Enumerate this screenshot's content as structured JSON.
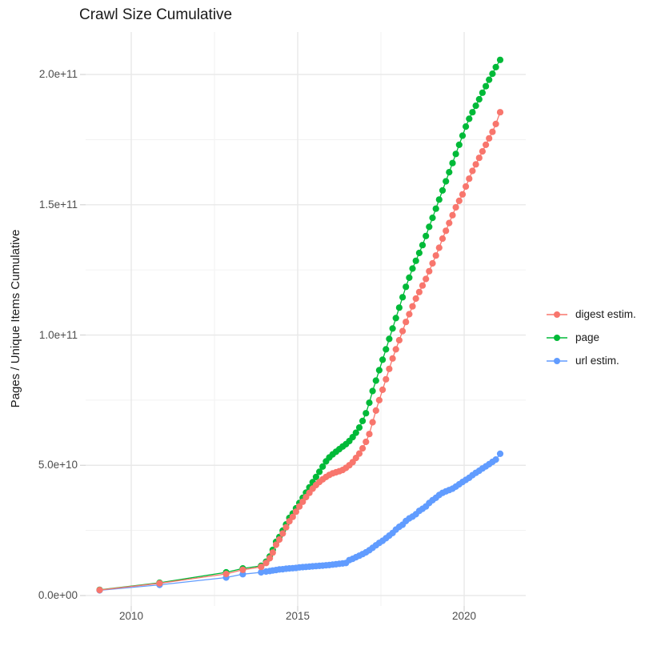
{
  "chart_data": {
    "type": "line",
    "title": "Crawl Size Cumulative",
    "xlabel": "",
    "ylabel": "Pages / Unique Items Cumulative",
    "grid": true,
    "legend_position": "right",
    "values_scale": 1000000000,
    "x_axis": {
      "range": [
        2008.63,
        2021.85
      ],
      "ticks": [
        {
          "value": 2010,
          "label": "2010"
        },
        {
          "value": 2015,
          "label": "2015"
        },
        {
          "value": 2020,
          "label": "2020"
        }
      ],
      "minor": [
        2012.5,
        2017.5
      ]
    },
    "y_axis": {
      "range": [
        -4,
        216.3
      ],
      "ticks": [
        {
          "value": 200,
          "label": "2.0e+11"
        },
        {
          "value": 150,
          "label": "1.5e+11"
        },
        {
          "value": 100,
          "label": "1.0e+11"
        },
        {
          "value": 50,
          "label": "5.0e+10"
        },
        {
          "value": 0,
          "label": "0.0e+00"
        }
      ],
      "minor": [
        25,
        75,
        125,
        175
      ]
    },
    "colors": {
      "grid_major": "#e8e8e8",
      "grid_minor": "#f1f1f1",
      "axis_tick": "#d4d4d4",
      "axis_text": "#4d4d4d",
      "title_text": "#1a1a1a"
    },
    "x": [
      2009.05,
      2010.85,
      2012.85,
      2013.35,
      2013.9,
      2014.05,
      2014.16,
      2014.25,
      2014.35,
      2014.45,
      2014.55,
      2014.65,
      2014.75,
      2014.85,
      2014.95,
      2015.05,
      2015.15,
      2015.25,
      2015.35,
      2015.45,
      2015.55,
      2015.65,
      2015.75,
      2015.85,
      2015.95,
      2016.05,
      2016.15,
      2016.25,
      2016.35,
      2016.45,
      2016.55,
      2016.65,
      2016.75,
      2016.85,
      2016.95,
      2017.05,
      2017.15,
      2017.25,
      2017.35,
      2017.45,
      2017.55,
      2017.65,
      2017.75,
      2017.85,
      2017.95,
      2018.05,
      2018.15,
      2018.25,
      2018.35,
      2018.45,
      2018.55,
      2018.65,
      2018.75,
      2018.85,
      2018.95,
      2019.05,
      2019.15,
      2019.25,
      2019.35,
      2019.45,
      2019.55,
      2019.65,
      2019.75,
      2019.85,
      2019.95,
      2020.05,
      2020.15,
      2020.25,
      2020.35,
      2020.45,
      2020.55,
      2020.65,
      2020.75,
      2020.85,
      2020.95,
      2021.08
    ],
    "draw_order": [
      1,
      2,
      0
    ],
    "series": [
      {
        "name": "digest estim.",
        "color": "#F8766D",
        "values": [
          2.1,
          4.7,
          8.3,
          9.9,
          11.0,
          12.5,
          14.3,
          16.5,
          19.5,
          21.5,
          23.8,
          26.2,
          28.5,
          30.2,
          32.2,
          34.2,
          36.0,
          37.8,
          39.4,
          41.0,
          42.4,
          43.6,
          44.6,
          45.5,
          46.3,
          46.9,
          47.3,
          47.7,
          48.2,
          49.0,
          50.0,
          51.2,
          52.8,
          54.5,
          56.5,
          59.0,
          62.0,
          66.5,
          71.0,
          75.0,
          79.0,
          83.0,
          87.0,
          91.0,
          94.5,
          98.0,
          101.5,
          105.0,
          108.0,
          111.0,
          114.0,
          116.5,
          119.0,
          121.5,
          124.5,
          127.5,
          130.5,
          133.5,
          137.0,
          140.0,
          143.0,
          146.0,
          149.0,
          151.5,
          154.0,
          157.0,
          160.0,
          163.0,
          165.5,
          168.0,
          170.5,
          173.0,
          175.5,
          178.0,
          181.0,
          185.5
        ]
      },
      {
        "name": "page",
        "color": "#00BA38",
        "values": [
          2.2,
          4.9,
          8.9,
          10.4,
          11.4,
          13.0,
          15.0,
          17.5,
          20.6,
          22.5,
          24.9,
          27.3,
          29.8,
          31.5,
          33.5,
          35.5,
          37.5,
          39.5,
          41.5,
          43.5,
          45.5,
          47.5,
          49.5,
          51.5,
          53.0,
          54.2,
          55.2,
          56.2,
          57.2,
          58.1,
          59.3,
          60.8,
          62.5,
          64.5,
          67.0,
          70.0,
          74.0,
          78.5,
          82.5,
          86.5,
          90.5,
          94.5,
          98.5,
          102.5,
          106.5,
          110.5,
          114.5,
          118.5,
          122.0,
          125.5,
          128.5,
          131.5,
          134.5,
          138.0,
          141.5,
          145.0,
          148.5,
          152.0,
          155.5,
          159.0,
          162.5,
          166.0,
          169.5,
          173.0,
          176.5,
          180.0,
          183.0,
          185.5,
          188.0,
          190.5,
          193.0,
          195.5,
          198.0,
          200.3,
          202.8,
          205.6
        ]
      },
      {
        "name": "url estim.",
        "color": "#619CFF",
        "values": [
          2.0,
          4.1,
          6.9,
          8.2,
          8.9,
          9.2,
          9.4,
          9.6,
          9.8,
          10.0,
          10.1,
          10.3,
          10.4,
          10.5,
          10.6,
          10.8,
          10.9,
          11.0,
          11.1,
          11.2,
          11.3,
          11.4,
          11.5,
          11.6,
          11.7,
          11.9,
          12.0,
          12.2,
          12.3,
          12.5,
          13.6,
          14.1,
          14.7,
          15.3,
          15.9,
          16.6,
          17.4,
          18.3,
          19.3,
          20.2,
          21.0,
          22.0,
          23.0,
          24.0,
          25.3,
          26.4,
          27.2,
          28.6,
          29.6,
          30.3,
          31.2,
          32.5,
          33.3,
          34.2,
          35.5,
          36.6,
          37.5,
          38.6,
          39.4,
          40.0,
          40.5,
          41.0,
          41.8,
          42.7,
          43.6,
          44.4,
          45.2,
          46.2,
          47.1,
          47.9,
          48.8,
          49.6,
          50.4,
          51.3,
          52.2,
          54.4
        ]
      }
    ]
  }
}
